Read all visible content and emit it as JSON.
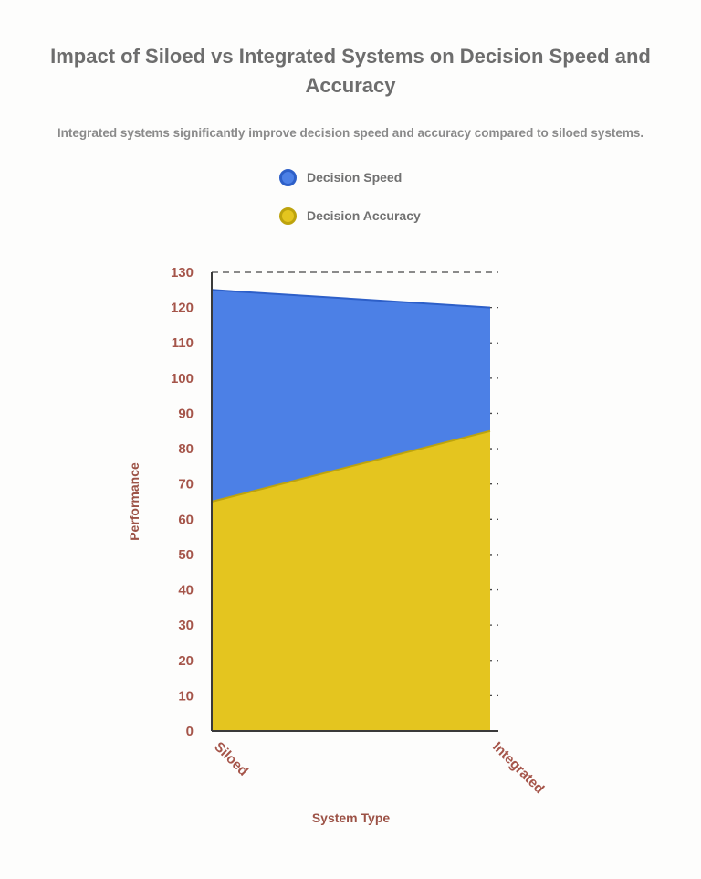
{
  "header": {
    "title": "Impact of Siloed vs Integrated Systems on Decision Speed and Accuracy",
    "subtitle": "Integrated systems significantly improve decision speed and accuracy compared to siloed systems."
  },
  "legend": {
    "items": [
      {
        "label": "Decision Speed",
        "color": "#4c80e6",
        "ring": "#2d5fc8"
      },
      {
        "label": "Decision Accuracy",
        "color": "#e4c51f",
        "ring": "#bda30d"
      }
    ]
  },
  "chart_data": {
    "type": "area",
    "categories": [
      "Siloed",
      "Integrated"
    ],
    "series": [
      {
        "name": "Decision Speed",
        "values": [
          125,
          120
        ],
        "fill": "#4c80e6",
        "stroke": "#2d5fc8"
      },
      {
        "name": "Decision Accuracy",
        "values": [
          65,
          85
        ],
        "fill": "#e4c51f",
        "stroke": "#bda30d"
      }
    ],
    "title": "Impact of Siloed vs Integrated Systems on Decision Speed and Accuracy",
    "xlabel": "System Type",
    "ylabel": "Performance",
    "ylim": [
      0,
      130
    ],
    "ytick_step": 10,
    "grid": "dashed-horizontal",
    "legend_position": "top-left-stacked",
    "note": "Both areas are baseline-0 overlapping fills; yellow (Decision Accuracy) is drawn in front of blue (Decision Speed). Values are the visible top boundaries read from the y-axis."
  },
  "colors": {
    "background": "#fdfdfc",
    "title_text": "#6d6d6d",
    "subtitle_text": "#8a8a8a",
    "axis_line": "#3a3a3a",
    "grid_line": "#454545",
    "tick_label": "#a5554a",
    "axis_title": "#9c5246",
    "legend_label": "#717171"
  }
}
